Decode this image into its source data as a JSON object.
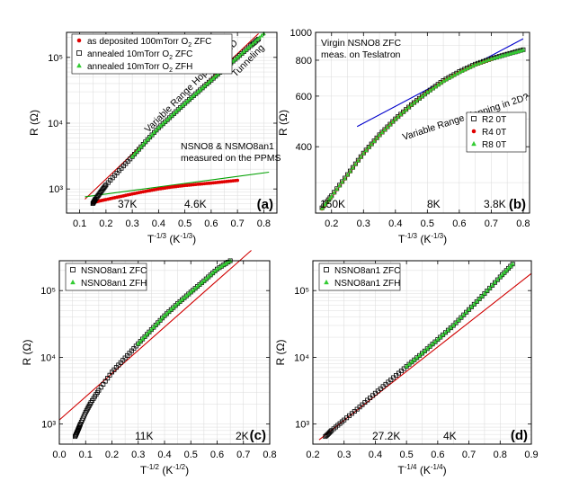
{
  "chart_data": [
    {
      "panel": "(a)",
      "type": "scatter",
      "y_scale": "log",
      "xlabel_main": "T",
      "xlabel_sup": "-1/3",
      "xlabel_unit_main": "(K",
      "xlabel_unit_sup": "-1/3",
      "xlabel_unit_end": ")",
      "ylabel": "R  (Ω)",
      "xlim": [
        0.05,
        0.85
      ],
      "ylim": [
        430,
        240000
      ],
      "xticks": [
        0.1,
        0.2,
        0.3,
        0.4,
        0.5,
        0.6,
        0.7,
        0.8
      ],
      "xtick_labels": [
        "0.1",
        "0.2",
        "0.3",
        "0.4",
        "0.5",
        "0.6",
        "0.7",
        "0.8"
      ],
      "yticks": [
        1000,
        10000,
        100000
      ],
      "ytick_labels": [
        "10³",
        "10⁴",
        "10⁵"
      ],
      "grid": true,
      "legend": [
        {
          "label_main": "as deposited 100mTorr O",
          "label_sub": "2",
          "label_end": " ZFC",
          "marker": "dot",
          "color": "#e00000"
        },
        {
          "label_main": "annealed 10mTorr O",
          "label_sub": "2",
          "label_end": " ZFC",
          "marker": "square",
          "color": "#000000"
        },
        {
          "label_main": "annealed 10mTorr O",
          "label_sub": "2",
          "label_end": " ZFH",
          "marker": "triangle",
          "color": "#33cc33"
        }
      ],
      "annotations": [
        "Variable Range Hopping in 2D",
        "Tunneling",
        "NSNO8 & NSMO8an1",
        "measured on the PPMS",
        "37K",
        "4.6K"
      ],
      "series": [
        {
          "name": "as deposited 100mTorr O2 ZFC",
          "color": "#e00000",
          "marker": "dot",
          "x": [
            0.15,
            0.17,
            0.2,
            0.25,
            0.3,
            0.35,
            0.4,
            0.45,
            0.5,
            0.55,
            0.6,
            0.65,
            0.7
          ],
          "y": [
            620,
            650,
            690,
            760,
            840,
            920,
            1000,
            1070,
            1130,
            1180,
            1230,
            1290,
            1350
          ]
        },
        {
          "name": "annealed 10mTorr O2 ZFC",
          "color": "#000000",
          "marker": "square",
          "x": [
            0.15,
            0.16,
            0.18,
            0.2,
            0.25,
            0.3,
            0.35,
            0.4,
            0.45,
            0.5,
            0.55,
            0.6,
            0.65,
            0.7,
            0.75,
            0.78
          ],
          "y": [
            600,
            700,
            900,
            1150,
            1900,
            3100,
            5200,
            8500,
            13000,
            20000,
            30000,
            45000,
            68000,
            100000,
            150000,
            190000
          ]
        },
        {
          "name": "annealed 10mTorr O2 ZFH",
          "color": "#33cc33",
          "marker": "triangle",
          "x": [
            0.3,
            0.35,
            0.4,
            0.45,
            0.5,
            0.55,
            0.6,
            0.65,
            0.7,
            0.75,
            0.8
          ],
          "y": [
            3100,
            5200,
            8500,
            13000,
            20000,
            30000,
            45000,
            68000,
            100000,
            150000,
            230000
          ]
        }
      ],
      "fits": [
        {
          "color": "#d00000",
          "x": [
            0.12,
            0.78
          ],
          "y": [
            700,
            230000
          ]
        },
        {
          "color": "#00a000",
          "x": [
            0.12,
            0.82
          ],
          "y": [
            760,
            1800
          ]
        }
      ]
    },
    {
      "panel": "(b)",
      "type": "scatter",
      "y_scale": "log",
      "xlabel_main": "T",
      "xlabel_sup": "-1/3",
      "xlabel_unit_main": "(K",
      "xlabel_unit_sup": "-1/3",
      "xlabel_unit_end": ")",
      "ylabel": "R  (Ω)",
      "xlim": [
        0.15,
        0.82
      ],
      "ylim": [
        235,
        1000
      ],
      "xticks": [
        0.2,
        0.3,
        0.4,
        0.5,
        0.6,
        0.7,
        0.8
      ],
      "xtick_labels": [
        "0.2",
        "0.3",
        "0.4",
        "0.5",
        "0.6",
        "0.7",
        "0.8"
      ],
      "yticks": [
        400,
        600,
        800,
        1000
      ],
      "ytick_labels": [
        "400",
        "600",
        "800",
        "1000"
      ],
      "grid": true,
      "legend": [
        {
          "label_main": "R2  0T",
          "label_sub": "",
          "label_end": "",
          "marker": "square",
          "color": "#000000"
        },
        {
          "label_main": "R4  0T",
          "label_sub": "",
          "label_end": "",
          "marker": "dot",
          "color": "#e00000"
        },
        {
          "label_main": "R8  0T",
          "label_sub": "",
          "label_end": "",
          "marker": "triangle",
          "color": "#33cc33"
        }
      ],
      "annotations": [
        "Virgin NSNO8 ZFC",
        "meas. on Teslatron",
        "Variable Range Hopping in 2D?",
        "150K",
        "8K",
        "3.8K"
      ],
      "series": [
        {
          "name": "R2  0T",
          "color": "#000000",
          "marker": "square",
          "x": [
            0.17,
            0.2,
            0.25,
            0.3,
            0.35,
            0.4,
            0.45,
            0.5,
            0.55,
            0.6,
            0.65,
            0.7,
            0.75,
            0.8
          ],
          "y": [
            245,
            270,
            320,
            380,
            440,
            500,
            560,
            620,
            680,
            730,
            775,
            810,
            840,
            870
          ]
        },
        {
          "name": "R4  0T",
          "color": "#e00000",
          "marker": "dot",
          "x": [
            0.17,
            0.2,
            0.25,
            0.3,
            0.35,
            0.4,
            0.45,
            0.5,
            0.55,
            0.6,
            0.65,
            0.7
          ],
          "y": [
            243,
            268,
            318,
            378,
            438,
            498,
            558,
            618,
            675,
            725,
            770,
            805
          ]
        },
        {
          "name": "R8  0T",
          "color": "#33cc33",
          "marker": "triangle",
          "x": [
            0.17,
            0.2,
            0.25,
            0.3,
            0.35,
            0.4,
            0.45,
            0.5,
            0.55,
            0.6,
            0.65,
            0.7,
            0.75,
            0.8
          ],
          "y": [
            244,
            269,
            319,
            379,
            439,
            499,
            559,
            619,
            676,
            726,
            772,
            808,
            838,
            868
          ]
        }
      ],
      "fits": [
        {
          "color": "#0000cc",
          "x": [
            0.28,
            0.8
          ],
          "y": [
            470,
            950
          ]
        }
      ]
    },
    {
      "panel": "(c)",
      "type": "scatter",
      "y_scale": "log",
      "xlabel_main": "T",
      "xlabel_sup": "-1/2",
      "xlabel_unit_main": "(K",
      "xlabel_unit_sup": "-1/2",
      "xlabel_unit_end": ")",
      "ylabel": "R  (Ω)",
      "xlim": [
        0.0,
        0.8
      ],
      "ylim": [
        500,
        280000
      ],
      "xticks": [
        0.0,
        0.1,
        0.2,
        0.3,
        0.4,
        0.5,
        0.6,
        0.7,
        0.8
      ],
      "xtick_labels": [
        "0.0",
        "0.1",
        "0.2",
        "0.3",
        "0.4",
        "0.5",
        "0.6",
        "0.7",
        "0.8"
      ],
      "yticks": [
        1000,
        10000,
        100000
      ],
      "ytick_labels": [
        "10³",
        "10⁴",
        "10⁵"
      ],
      "grid": true,
      "legend": [
        {
          "label_main": "NSNO8an1 ZFC",
          "label_sub": "",
          "label_end": "",
          "marker": "square",
          "color": "#000000"
        },
        {
          "label_main": "NSNO8an1 ZFH",
          "label_sub": "",
          "label_end": "",
          "marker": "triangle",
          "color": "#33cc33"
        }
      ],
      "annotations": [
        "11K",
        "2K"
      ],
      "series": [
        {
          "name": "NSNO8an1 ZFC",
          "color": "#000000",
          "marker": "square",
          "x": [
            0.06,
            0.07,
            0.08,
            0.1,
            0.12,
            0.15,
            0.2,
            0.25,
            0.3,
            0.35,
            0.4,
            0.45,
            0.5,
            0.55,
            0.6,
            0.65,
            0.7
          ],
          "y": [
            650,
            800,
            1000,
            1500,
            2100,
            3200,
            6000,
            9800,
            16000,
            26000,
            42000,
            64000,
            95000,
            140000,
            210000,
            280000,
            350000
          ]
        },
        {
          "name": "NSNO8an1 ZFH",
          "color": "#33cc33",
          "marker": "triangle",
          "x": [
            0.3,
            0.35,
            0.4,
            0.45,
            0.5,
            0.55,
            0.6,
            0.65,
            0.7
          ],
          "y": [
            16000,
            26000,
            42000,
            64000,
            95000,
            140000,
            210000,
            280000,
            350000
          ]
        }
      ],
      "fits": [
        {
          "color": "#d00000",
          "x": [
            0.0,
            0.73
          ],
          "y": [
            1150,
            400000
          ]
        }
      ]
    },
    {
      "panel": "(d)",
      "type": "scatter",
      "y_scale": "log",
      "xlabel_main": "T",
      "xlabel_sup": "-1/4",
      "xlabel_unit_main": "(K",
      "xlabel_unit_sup": "-1/4",
      "xlabel_unit_end": ")",
      "ylabel": "R  (Ω)",
      "xlim": [
        0.2,
        0.9
      ],
      "ylim": [
        500,
        280000
      ],
      "xticks": [
        0.2,
        0.3,
        0.4,
        0.5,
        0.6,
        0.7,
        0.8,
        0.9
      ],
      "xtick_labels": [
        "0.2",
        "0.3",
        "0.4",
        "0.5",
        "0.6",
        "0.7",
        "0.8",
        "0.9"
      ],
      "yticks": [
        1000,
        10000,
        100000
      ],
      "ytick_labels": [
        "10³",
        "10⁴",
        "10⁵"
      ],
      "grid": true,
      "legend": [
        {
          "label_main": "NSNO8an1 ZFC",
          "label_sub": "",
          "label_end": "",
          "marker": "square",
          "color": "#000000"
        },
        {
          "label_main": "NSNO8an1 ZFH",
          "label_sub": "",
          "label_end": "",
          "marker": "triangle",
          "color": "#33cc33"
        }
      ],
      "annotations": [
        "27.2K",
        "4K"
      ],
      "series": [
        {
          "name": "NSNO8an1 ZFC",
          "color": "#000000",
          "marker": "square",
          "x": [
            0.24,
            0.26,
            0.3,
            0.35,
            0.4,
            0.45,
            0.5,
            0.55,
            0.6,
            0.65,
            0.7,
            0.75,
            0.8,
            0.84
          ],
          "y": [
            650,
            800,
            1150,
            1800,
            2900,
            4600,
            7300,
            11500,
            18500,
            30000,
            52000,
            90000,
            160000,
            250000
          ]
        },
        {
          "name": "NSNO8an1 ZFH",
          "color": "#33cc33",
          "marker": "triangle",
          "x": [
            0.5,
            0.55,
            0.6,
            0.65,
            0.7,
            0.75,
            0.8,
            0.84
          ],
          "y": [
            7300,
            11500,
            18500,
            30000,
            52000,
            90000,
            160000,
            250000
          ]
        }
      ],
      "fits": [
        {
          "color": "#d00000",
          "x": [
            0.22,
            0.9
          ],
          "y": [
            580,
            180000
          ]
        }
      ]
    }
  ],
  "panel_labels": [
    "(a)",
    "(b)",
    "(c)",
    "(d)"
  ]
}
